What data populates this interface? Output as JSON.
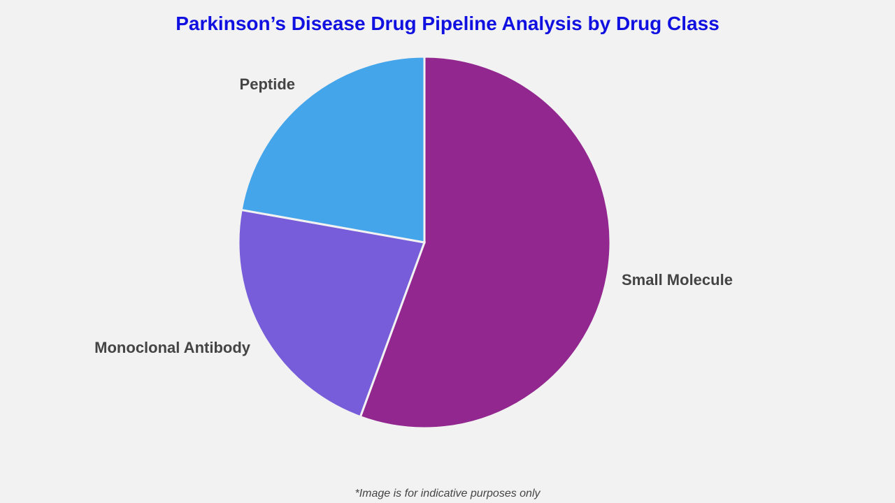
{
  "chart_data": {
    "type": "pie",
    "title": "Parkinson’s Disease Drug Pipeline Analysis by Drug Class",
    "start_angle": "12 o'clock, clockwise",
    "slices": [
      {
        "label": "Small Molecule",
        "value": 55.6,
        "color": "#92278f"
      },
      {
        "label": "Monoclonal Antibody",
        "value": 22.2,
        "color": "#775dd9"
      },
      {
        "label": "Peptide",
        "value": 22.2,
        "color": "#45a5ea"
      }
    ]
  },
  "footnote": "*Image is for indicative purposes only"
}
